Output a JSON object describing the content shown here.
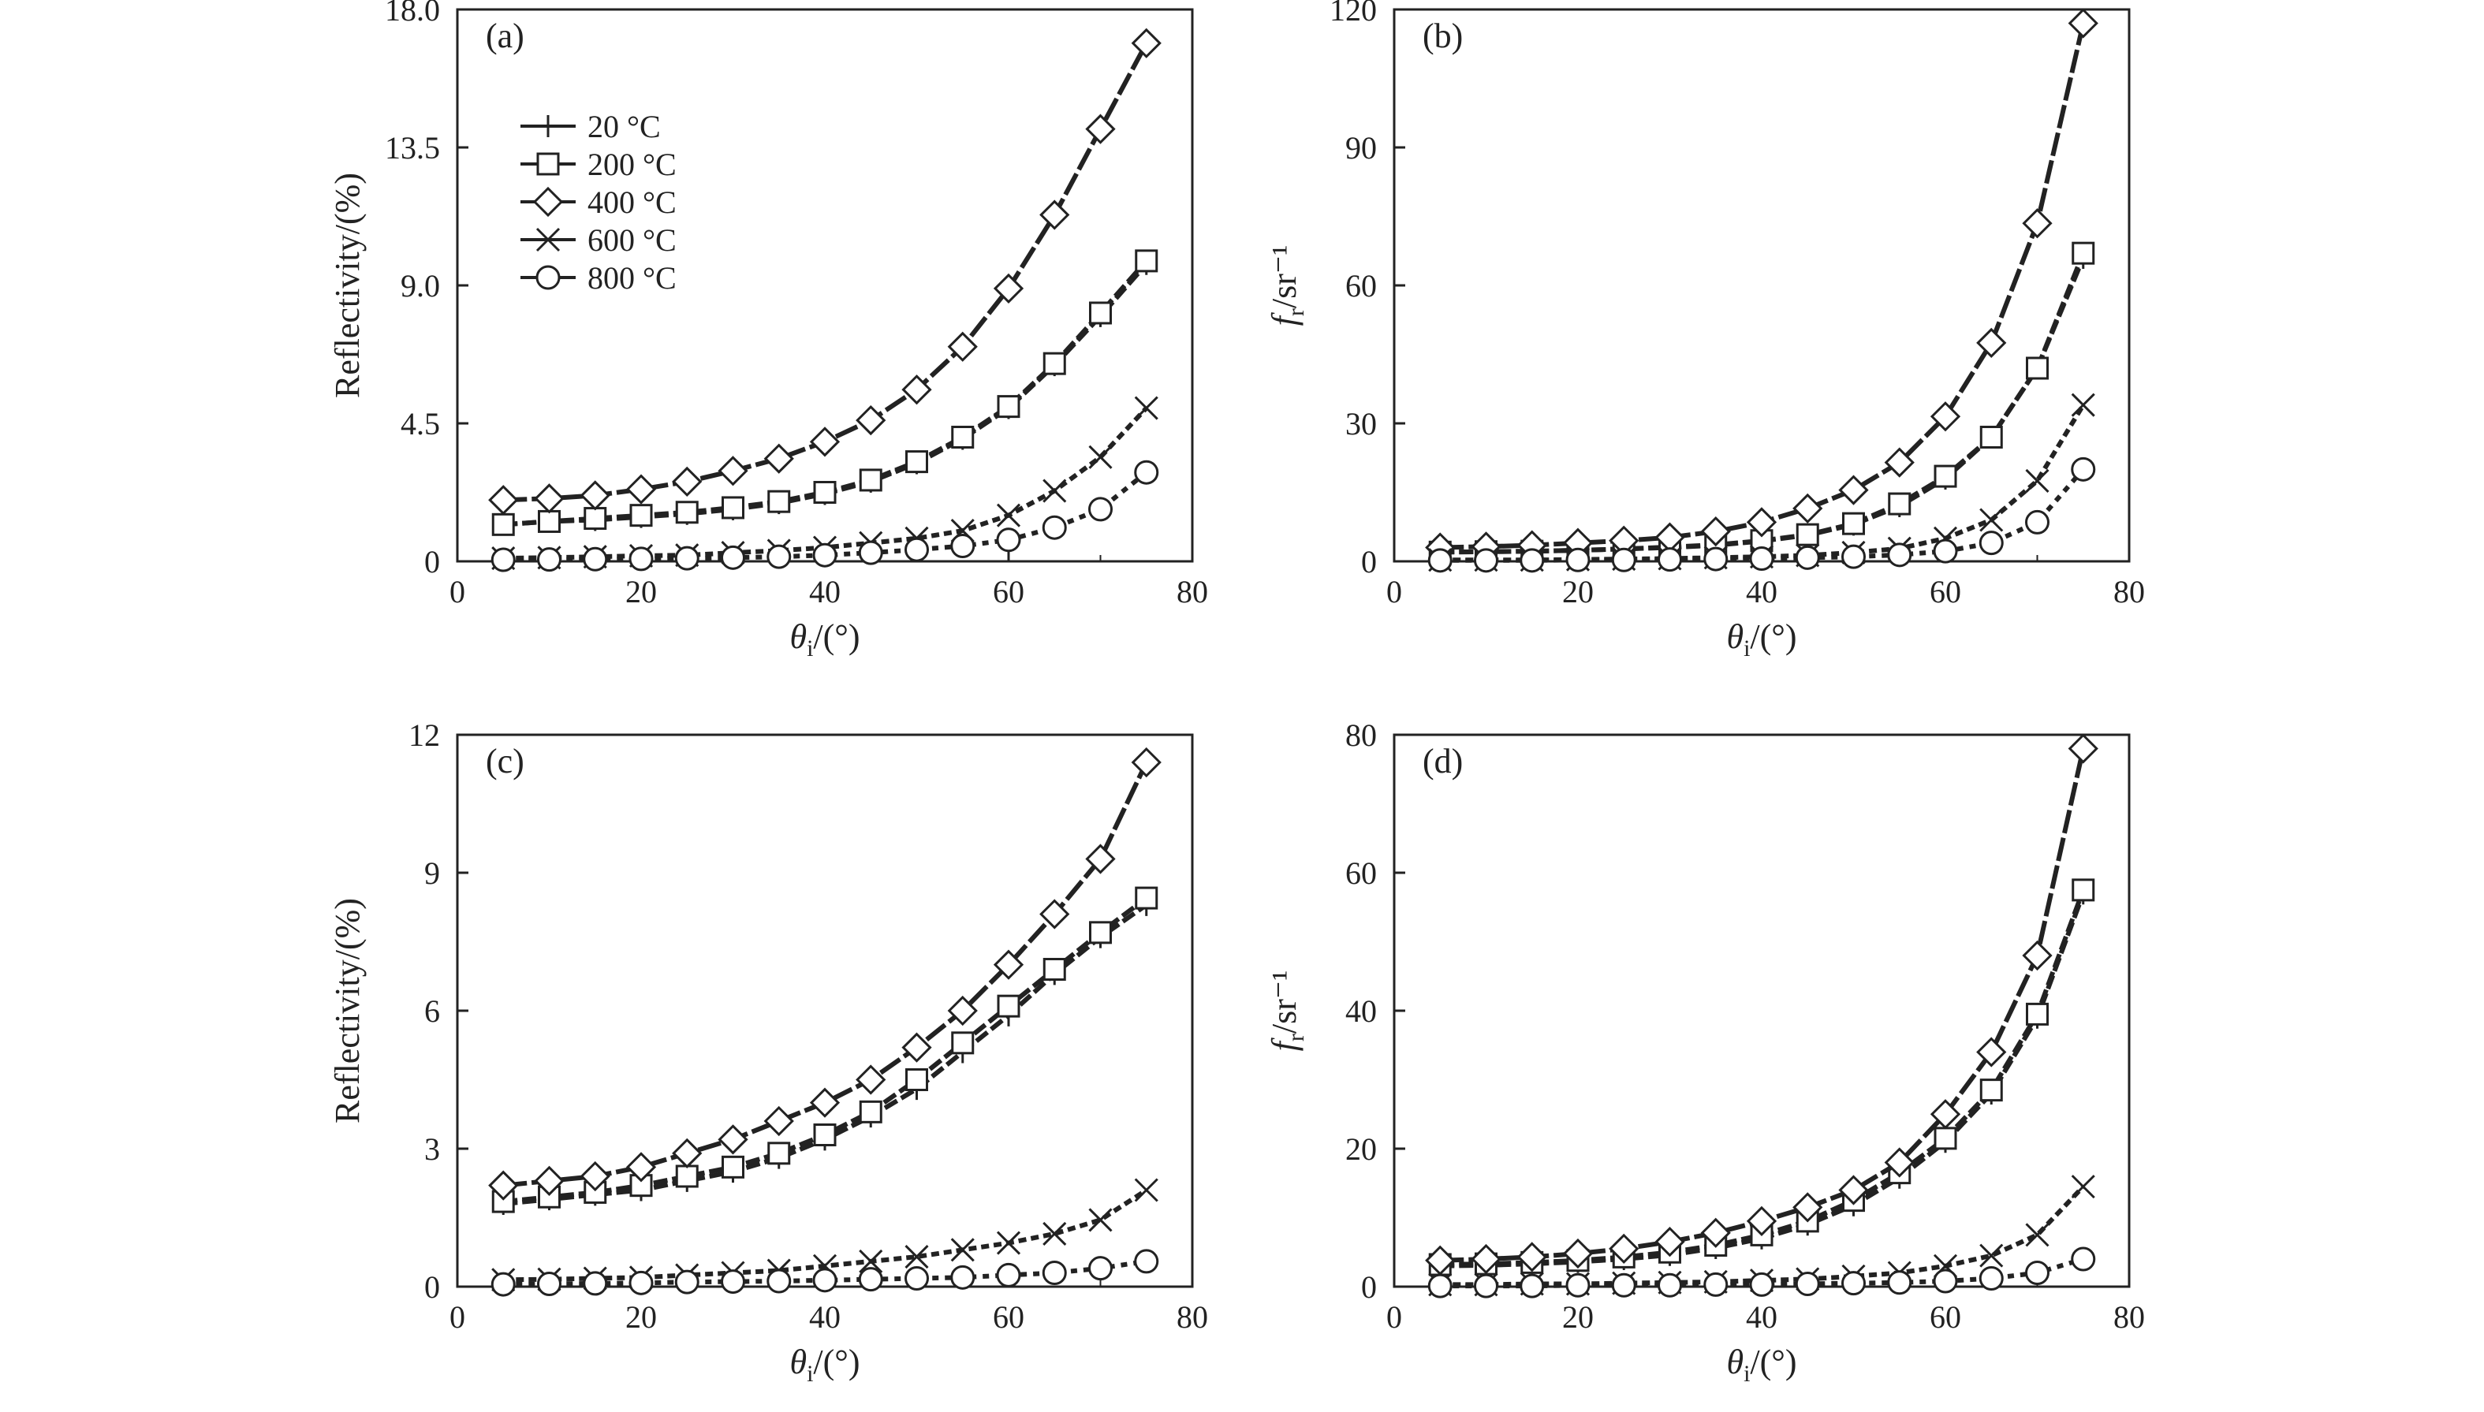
{
  "figure": {
    "legend": {
      "entries": [
        {
          "label": "20 °C",
          "marker": "plus"
        },
        {
          "label": "200 °C",
          "marker": "square"
        },
        {
          "label": "400 °C",
          "marker": "diamond"
        },
        {
          "label": "600 °C",
          "marker": "cross"
        },
        {
          "label": "800 °C",
          "marker": "circle"
        }
      ]
    }
  },
  "chart_data": [
    {
      "panel_label": "(a)",
      "type": "line",
      "xlabel": "θi/(°)",
      "ylabel": "Reflectivity/(%)",
      "xlim": [
        0,
        80
      ],
      "ylim": [
        0,
        18
      ],
      "x_ticks": [
        0,
        20,
        40,
        60,
        80
      ],
      "y_ticks": [
        "0",
        "4.5",
        "9.0",
        "13.5",
        "18.0"
      ],
      "x": [
        5,
        10,
        15,
        20,
        25,
        30,
        35,
        40,
        45,
        50,
        55,
        60,
        65,
        70,
        75
      ],
      "legend": "top-left",
      "series": [
        {
          "name": "20 °C",
          "marker": "plus",
          "values": [
            1.2,
            1.3,
            1.35,
            1.45,
            1.55,
            1.7,
            1.9,
            2.2,
            2.6,
            3.2,
            4.0,
            5.0,
            6.4,
            8.0,
            9.7
          ]
        },
        {
          "name": "200 °C",
          "marker": "square",
          "values": [
            1.2,
            1.3,
            1.4,
            1.5,
            1.6,
            1.75,
            1.95,
            2.25,
            2.65,
            3.25,
            4.05,
            5.05,
            6.45,
            8.1,
            9.8
          ]
        },
        {
          "name": "400 °C",
          "marker": "diamond",
          "values": [
            2.0,
            2.05,
            2.15,
            2.35,
            2.6,
            2.95,
            3.35,
            3.9,
            4.6,
            5.6,
            7.0,
            8.9,
            11.3,
            14.1,
            16.9
          ]
        },
        {
          "name": "600 °C",
          "marker": "cross",
          "values": [
            0.1,
            0.12,
            0.15,
            0.18,
            0.2,
            0.28,
            0.35,
            0.45,
            0.6,
            0.75,
            1.0,
            1.5,
            2.3,
            3.4,
            5.0
          ]
        },
        {
          "name": "800 °C",
          "marker": "circle",
          "values": [
            0.05,
            0.06,
            0.07,
            0.08,
            0.1,
            0.12,
            0.15,
            0.2,
            0.28,
            0.38,
            0.5,
            0.7,
            1.1,
            1.7,
            2.9
          ]
        }
      ]
    },
    {
      "panel_label": "(b)",
      "type": "line",
      "xlabel": "θi/(°)",
      "ylabel": "fr/sr⁻¹",
      "xlim": [
        0,
        80
      ],
      "ylim": [
        0,
        120
      ],
      "x_ticks": [
        0,
        20,
        40,
        60,
        80
      ],
      "y_ticks": [
        "0",
        "30",
        "60",
        "90",
        "120"
      ],
      "x": [
        5,
        10,
        15,
        20,
        25,
        30,
        35,
        40,
        45,
        50,
        55,
        60,
        65,
        70,
        75
      ],
      "series": [
        {
          "name": "20 °C",
          "marker": "plus",
          "values": [
            2.0,
            2.1,
            2.2,
            2.4,
            2.7,
            3.0,
            3.5,
            4.4,
            5.7,
            8.0,
            12.0,
            18.0,
            27.0,
            42.0,
            66.0
          ]
        },
        {
          "name": "200 °C",
          "marker": "square",
          "values": [
            2.0,
            2.1,
            2.2,
            2.4,
            2.7,
            3.1,
            3.6,
            4.5,
            5.8,
            8.2,
            12.5,
            18.5,
            27.0,
            42.0,
            67.0
          ]
        },
        {
          "name": "400 °C",
          "marker": "diamond",
          "values": [
            3.0,
            3.2,
            3.5,
            4.0,
            4.5,
            5.2,
            6.5,
            8.5,
            11.5,
            15.5,
            21.5,
            31.5,
            47.5,
            73.5,
            117.0
          ]
        },
        {
          "name": "600 °C",
          "marker": "cross",
          "values": [
            0.3,
            0.3,
            0.3,
            0.4,
            0.5,
            0.6,
            0.8,
            1.0,
            1.3,
            1.9,
            2.8,
            5.0,
            9.0,
            17.5,
            34.0
          ]
        },
        {
          "name": "800 °C",
          "marker": "circle",
          "values": [
            0.2,
            0.2,
            0.2,
            0.3,
            0.3,
            0.4,
            0.5,
            0.6,
            0.8,
            1.0,
            1.4,
            2.2,
            4.0,
            8.5,
            20.0
          ]
        }
      ]
    },
    {
      "panel_label": "(c)",
      "type": "line",
      "xlabel": "θi/(°)",
      "ylabel": "Reflectivity/(%)",
      "xlim": [
        0,
        80
      ],
      "ylim": [
        0,
        12
      ],
      "x_ticks": [
        0,
        20,
        40,
        60,
        80
      ],
      "y_ticks": [
        "0",
        "3",
        "6",
        "9",
        "12"
      ],
      "x": [
        5,
        10,
        15,
        20,
        25,
        30,
        35,
        40,
        45,
        50,
        55,
        60,
        65,
        70,
        75
      ],
      "series": [
        {
          "name": "20 °C",
          "marker": "plus",
          "values": [
            1.8,
            1.9,
            2.0,
            2.1,
            2.3,
            2.5,
            2.8,
            3.2,
            3.7,
            4.3,
            5.1,
            5.9,
            6.8,
            7.6,
            8.3
          ]
        },
        {
          "name": "200 °C",
          "marker": "square",
          "values": [
            1.85,
            1.95,
            2.05,
            2.2,
            2.4,
            2.6,
            2.9,
            3.3,
            3.8,
            4.5,
            5.3,
            6.1,
            6.9,
            7.7,
            8.45
          ]
        },
        {
          "name": "400 °C",
          "marker": "diamond",
          "values": [
            2.2,
            2.3,
            2.4,
            2.6,
            2.9,
            3.2,
            3.6,
            4.0,
            4.5,
            5.2,
            6.0,
            7.0,
            8.1,
            9.3,
            11.4
          ]
        },
        {
          "name": "600 °C",
          "marker": "cross",
          "values": [
            0.15,
            0.16,
            0.18,
            0.2,
            0.25,
            0.3,
            0.35,
            0.45,
            0.55,
            0.65,
            0.8,
            0.95,
            1.15,
            1.45,
            2.1
          ]
        },
        {
          "name": "800 °C",
          "marker": "circle",
          "values": [
            0.05,
            0.06,
            0.07,
            0.08,
            0.1,
            0.11,
            0.12,
            0.14,
            0.16,
            0.18,
            0.2,
            0.25,
            0.3,
            0.4,
            0.55
          ]
        }
      ]
    },
    {
      "panel_label": "(d)",
      "type": "line",
      "xlabel": "θi/(°)",
      "ylabel": "fr/sr⁻¹",
      "xlim": [
        0,
        80
      ],
      "ylim": [
        0,
        80
      ],
      "x_ticks": [
        0,
        20,
        40,
        60,
        80
      ],
      "y_ticks": [
        "0",
        "20",
        "40",
        "60",
        "80"
      ],
      "x": [
        5,
        10,
        15,
        20,
        25,
        30,
        35,
        40,
        45,
        50,
        55,
        60,
        65,
        70,
        75
      ],
      "series": [
        {
          "name": "20 °C",
          "marker": "plus",
          "values": [
            3.0,
            3.1,
            3.3,
            3.6,
            4.0,
            4.6,
            5.6,
            7.0,
            9.0,
            11.8,
            15.8,
            21.0,
            28.0,
            39.0,
            57.0
          ]
        },
        {
          "name": "200 °C",
          "marker": "square",
          "values": [
            3.2,
            3.3,
            3.5,
            3.8,
            4.3,
            5.0,
            6.0,
            7.5,
            9.5,
            12.5,
            16.5,
            21.5,
            28.5,
            39.5,
            57.5
          ]
        },
        {
          "name": "400 °C",
          "marker": "diamond",
          "values": [
            3.8,
            4.0,
            4.3,
            4.8,
            5.5,
            6.5,
            7.8,
            9.5,
            11.5,
            14.0,
            18.0,
            25.0,
            34.0,
            48.0,
            78.0
          ]
        },
        {
          "name": "600 °C",
          "marker": "cross",
          "values": [
            0.3,
            0.3,
            0.4,
            0.4,
            0.5,
            0.6,
            0.7,
            0.9,
            1.1,
            1.5,
            2.0,
            3.0,
            4.5,
            7.5,
            14.5
          ]
        },
        {
          "name": "800 °C",
          "marker": "circle",
          "values": [
            0.1,
            0.1,
            0.1,
            0.2,
            0.2,
            0.2,
            0.3,
            0.3,
            0.4,
            0.5,
            0.6,
            0.8,
            1.2,
            2.0,
            4.0
          ]
        }
      ]
    }
  ]
}
